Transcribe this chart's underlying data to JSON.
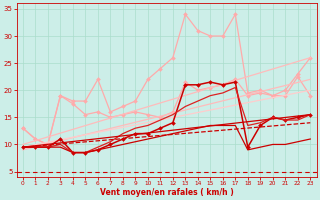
{
  "bg_color": "#cceee8",
  "grid_color": "#aaddcc",
  "xlabel": "Vent moyen/en rafales ( km/h )",
  "xlabel_color": "#cc0000",
  "tick_color": "#cc0000",
  "xlim": [
    -0.5,
    23.5
  ],
  "ylim": [
    4,
    36
  ],
  "yticks": [
    5,
    10,
    15,
    20,
    25,
    30,
    35
  ],
  "xticks": [
    0,
    1,
    2,
    3,
    4,
    5,
    6,
    7,
    8,
    9,
    10,
    11,
    12,
    13,
    14,
    15,
    16,
    17,
    18,
    19,
    20,
    21,
    22,
    23
  ],
  "lines": [
    {
      "x": [
        0,
        1,
        2,
        3,
        4,
        5,
        6,
        7,
        8,
        9,
        10,
        11,
        12,
        13,
        14,
        15,
        16,
        17,
        18,
        19,
        20,
        21,
        22,
        23
      ],
      "y": [
        13,
        11,
        10,
        19,
        18,
        18,
        22,
        16,
        17,
        18,
        22,
        24,
        26,
        34,
        31,
        30,
        30,
        34,
        19.5,
        20,
        19,
        20,
        23,
        26
      ],
      "color": "#ffaaaa",
      "lw": 0.9,
      "marker": "D",
      "ms": 2.0,
      "linestyle": "-"
    },
    {
      "x": [
        0,
        1,
        2,
        3,
        4,
        5,
        6,
        7,
        8,
        9,
        10,
        11,
        12,
        13,
        14,
        15,
        16,
        17,
        18,
        19,
        20,
        21,
        22,
        23
      ],
      "y": [
        13,
        11,
        10,
        19,
        17.5,
        15.5,
        16,
        15,
        15.5,
        16,
        15.5,
        15,
        16,
        21.5,
        20,
        20.5,
        21,
        22,
        19,
        19.5,
        19,
        19,
        22.5,
        19
      ],
      "color": "#ffaaaa",
      "lw": 0.9,
      "marker": "D",
      "ms": 2.0,
      "linestyle": "-"
    },
    {
      "x": [
        0,
        23
      ],
      "y": [
        10,
        26
      ],
      "color": "#ffbbbb",
      "lw": 0.9,
      "marker": null,
      "ms": 0,
      "linestyle": "-"
    },
    {
      "x": [
        0,
        23
      ],
      "y": [
        9,
        22
      ],
      "color": "#ffbbbb",
      "lw": 0.9,
      "marker": null,
      "ms": 0,
      "linestyle": "-"
    },
    {
      "x": [
        0,
        23
      ],
      "y": [
        9.5,
        20
      ],
      "color": "#ffcccc",
      "lw": 0.9,
      "marker": null,
      "ms": 0,
      "linestyle": "-"
    },
    {
      "x": [
        0,
        1,
        2,
        3,
        4,
        5,
        6,
        7,
        8,
        9,
        10,
        11,
        12,
        13,
        14,
        15,
        16,
        17,
        18,
        19,
        20,
        21,
        22,
        23
      ],
      "y": [
        9.5,
        9.5,
        9.5,
        11,
        8.5,
        8.5,
        9,
        10,
        11,
        12,
        12,
        13,
        14,
        21,
        21,
        21.5,
        21,
        21.5,
        9.5,
        13.5,
        15,
        14.5,
        15,
        15.5
      ],
      "color": "#cc0000",
      "lw": 1.1,
      "marker": "D",
      "ms": 2.0,
      "linestyle": "-"
    },
    {
      "x": [
        0,
        1,
        2,
        3,
        4,
        5,
        6,
        7,
        8,
        9,
        10,
        11,
        12,
        13,
        14,
        15,
        16,
        17,
        18,
        19,
        20,
        21,
        22,
        23
      ],
      "y": [
        9.5,
        9.5,
        9.5,
        10,
        8.5,
        8.5,
        9.5,
        10.5,
        12,
        13,
        13.5,
        14.5,
        15.5,
        17,
        18,
        19,
        19.5,
        20.5,
        13.5,
        14,
        15,
        14.5,
        14.5,
        15.5
      ],
      "color": "#dd2222",
      "lw": 0.9,
      "marker": null,
      "ms": 0,
      "linestyle": "-"
    },
    {
      "x": [
        0,
        23
      ],
      "y": [
        9.5,
        15.5
      ],
      "color": "#cc0000",
      "lw": 0.9,
      "marker": null,
      "ms": 0,
      "linestyle": "-"
    },
    {
      "x": [
        0,
        23
      ],
      "y": [
        9.5,
        14
      ],
      "color": "#cc0000",
      "lw": 0.9,
      "marker": null,
      "ms": 0,
      "linestyle": "--"
    },
    {
      "x": [
        0,
        1,
        2,
        3,
        4,
        5,
        6,
        7,
        8,
        9,
        10,
        11,
        12,
        13,
        14,
        15,
        16,
        17,
        18,
        19,
        20,
        21,
        22,
        23
      ],
      "y": [
        9.5,
        9.5,
        9.5,
        9.5,
        8.5,
        8.5,
        9,
        9.5,
        10,
        10.5,
        11,
        11.5,
        12,
        12.5,
        13,
        13.5,
        13.5,
        13.5,
        9,
        9.5,
        10,
        10,
        10.5,
        11
      ],
      "color": "#cc0000",
      "lw": 0.9,
      "marker": null,
      "ms": 0,
      "linestyle": "-"
    }
  ],
  "dashed_line": {
    "y": 5,
    "color": "#cc0000",
    "lw": 0.8,
    "linestyle": [
      0,
      [
        4,
        3
      ]
    ]
  }
}
